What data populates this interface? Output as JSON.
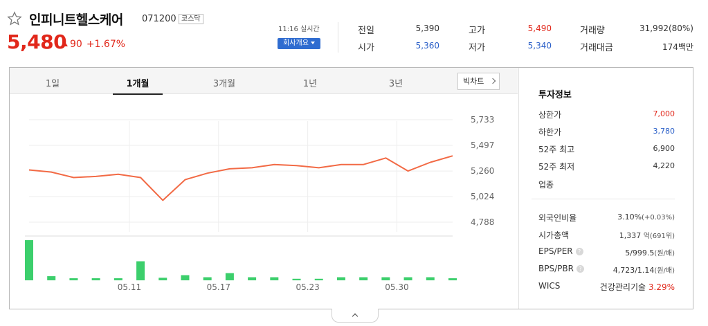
{
  "stock": {
    "name": "인피니트헬스케어",
    "code": "071200",
    "market": "코스닥",
    "price": "5,480",
    "change": "90",
    "change_pct": "+1.67%",
    "realtime": "11:16 실시간",
    "company_button": "회사개요"
  },
  "quote": {
    "prev_close_label": "전일",
    "prev_close": "5,390",
    "high_label": "고가",
    "high": "5,490",
    "volume_label": "거래량",
    "volume": "31,992(80%)",
    "open_label": "시가",
    "open": "5,360",
    "low_label": "저가",
    "low": "5,340",
    "amount_label": "거래대금",
    "amount": "174백만"
  },
  "tabs": [
    "1일",
    "1개월",
    "3개월",
    "1년",
    "3년"
  ],
  "active_tab": "1개월",
  "bigchart_label": "빅차트",
  "invest": {
    "title": "투자정보",
    "upper_limit_label": "상한가",
    "upper_limit": "7,000",
    "lower_limit_label": "하한가",
    "lower_limit": "3,780",
    "high52_label": "52주 최고",
    "high52": "6,900",
    "low52_label": "52주 최저",
    "low52": "4,220",
    "sector_label": "업종",
    "foreign_label": "외국인비율",
    "foreign": "3.10%",
    "foreign_change": "(+0.03%)",
    "market_cap_label": "시가총액",
    "market_cap": "1,337",
    "market_cap_unit": "억(691위)",
    "eps_per_label": "EPS/PER",
    "eps_per": "5/999.5",
    "eps_per_unit": "(원/배)",
    "bps_pbr_label": "BPS/PBR",
    "bps_pbr": "4,723/1.14",
    "bps_pbr_unit": "(원/배)",
    "wics_label": "WICS",
    "wics": "건강관리기술",
    "wics_pct": "3.29%"
  },
  "colors": {
    "up": "#e1271a",
    "down": "#2a5fc8",
    "line": "#f26a45",
    "volume": "#3ccf6c"
  },
  "chart_data": {
    "type": "line",
    "series": [
      {
        "values": [
          5270,
          5250,
          5200,
          5210,
          5230,
          5200,
          4990,
          5180,
          5240,
          5280,
          5290,
          5320,
          5310,
          5290,
          5320,
          5320,
          5380,
          5260,
          5340,
          5400
        ]
      }
    ],
    "volume": [
      39000,
      4000,
      2000,
      2000,
      2000,
      18500,
      2500,
      5000,
      3000,
      7000,
      3000,
      3000,
      1500,
      1500,
      3000,
      3000,
      3000,
      3000,
      3000,
      2000
    ],
    "yticks": [
      "5,733",
      "5,497",
      "5,260",
      "5,024",
      "4,788"
    ],
    "ytick_values": [
      5733,
      5497,
      5260,
      5024,
      4788
    ],
    "ylim": [
      4788,
      5733
    ],
    "xtick_labels": [
      "05.11",
      "05.17",
      "05.23",
      "05.30"
    ],
    "xtick_positions": [
      4.5,
      8.5,
      12.5,
      16.5
    ],
    "grid": true
  }
}
